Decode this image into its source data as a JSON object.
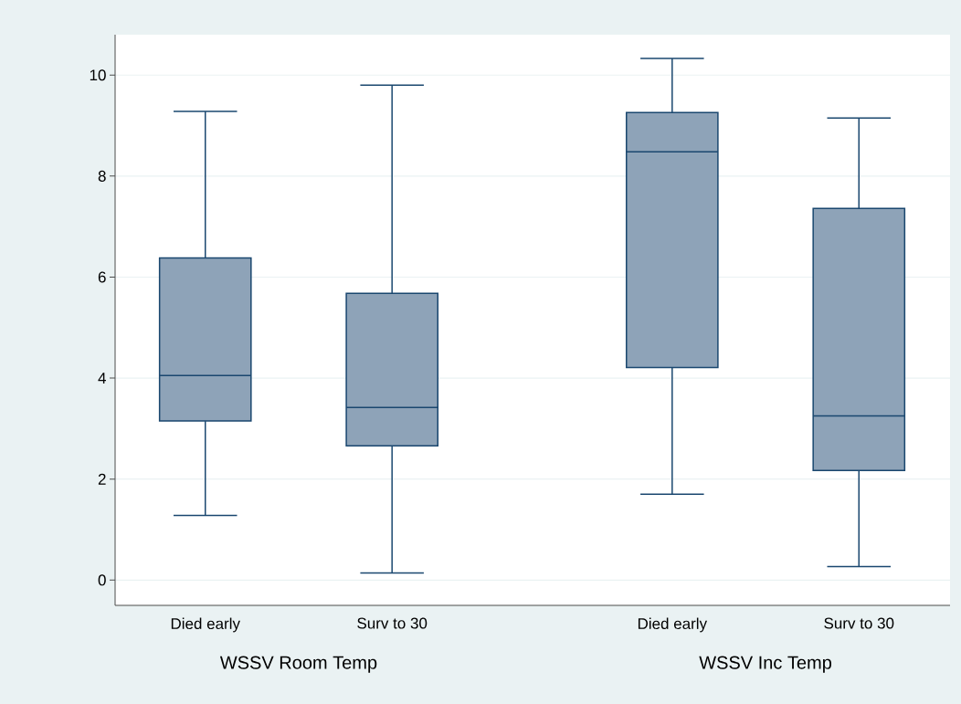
{
  "chart_data": {
    "type": "box",
    "categories": [
      "Died early",
      "Surv to 30",
      "Died early",
      "Surv to 30"
    ],
    "boxes": [
      {
        "low": 1.28,
        "q1": 3.15,
        "median": 4.05,
        "q3": 6.38,
        "high": 9.28
      },
      {
        "low": 0.14,
        "q1": 2.66,
        "median": 3.42,
        "q3": 5.68,
        "high": 9.8
      },
      {
        "low": 1.7,
        "q1": 4.21,
        "median": 8.48,
        "q3": 9.26,
        "high": 10.33
      },
      {
        "low": 0.27,
        "q1": 2.17,
        "median": 3.25,
        "q3": 7.36,
        "high": 9.15
      }
    ],
    "color": "#8ea3b8",
    "ylim": [
      -0.5,
      10.8
    ],
    "yticks": [
      0,
      2,
      4,
      6,
      8,
      10
    ],
    "grid": "y",
    "annotations": [
      "WSSV Room Temp",
      "WSSV Inc Temp"
    ]
  }
}
